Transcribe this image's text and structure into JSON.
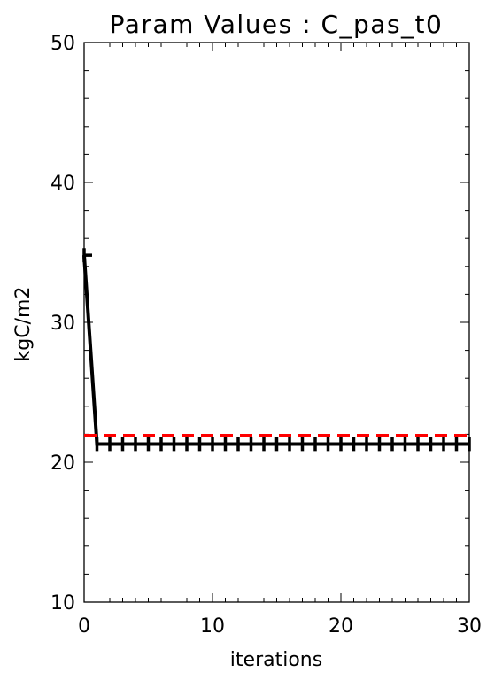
{
  "chart_data": {
    "type": "line",
    "title": "Param Values : C_pas_t0",
    "xlabel": "iterations",
    "ylabel": "kgC/m2",
    "xlim": [
      0,
      30
    ],
    "ylim": [
      10,
      50
    ],
    "x_ticks": [
      0,
      10,
      20,
      30
    ],
    "y_ticks": [
      10,
      20,
      30,
      40,
      50
    ],
    "series": [
      {
        "style": "solid",
        "color": "#000000",
        "markers": "error-bar",
        "x": [
          0,
          1,
          2,
          3,
          4,
          5,
          6,
          7,
          8,
          9,
          10,
          11,
          12,
          13,
          14,
          15,
          16,
          17,
          18,
          19,
          20,
          21,
          22,
          23,
          24,
          25,
          26,
          27,
          28,
          29,
          30
        ],
        "values": [
          34.8,
          21.3,
          21.3,
          21.3,
          21.3,
          21.3,
          21.3,
          21.3,
          21.3,
          21.3,
          21.3,
          21.3,
          21.3,
          21.3,
          21.3,
          21.3,
          21.3,
          21.3,
          21.3,
          21.3,
          21.3,
          21.3,
          21.3,
          21.3,
          21.3,
          21.3,
          21.3,
          21.3,
          21.3,
          21.3,
          21.3
        ]
      },
      {
        "style": "dashed",
        "color": "#ff0000",
        "x": [
          0,
          30
        ],
        "values": [
          21.9,
          21.9
        ]
      }
    ],
    "error_bar_halfwidth": 0.5,
    "grid": false
  }
}
